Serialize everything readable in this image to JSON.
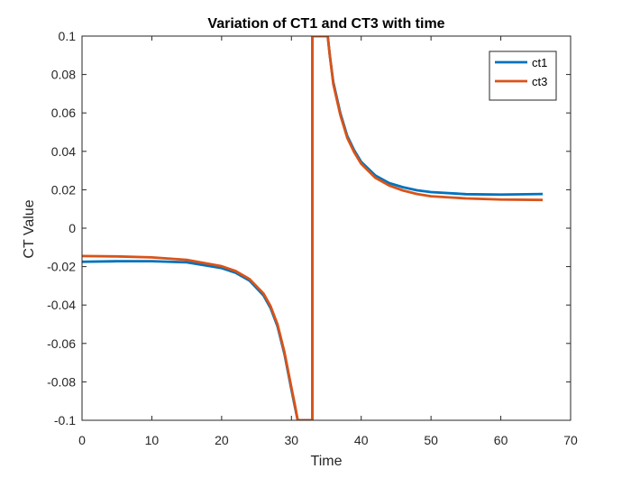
{
  "chart_data": {
    "type": "line",
    "title": "Variation of CT1 and CT3 with time",
    "xlabel": "Time",
    "ylabel": "CT Value",
    "xlim": [
      0,
      70
    ],
    "ylim": [
      -0.1,
      0.1
    ],
    "xticks": [
      0,
      10,
      20,
      30,
      40,
      50,
      60,
      70
    ],
    "xtick_labels": [
      "0",
      "10",
      "20",
      "30",
      "40",
      "50",
      "60",
      "70"
    ],
    "yticks": [
      -0.1,
      -0.08,
      -0.06,
      -0.04,
      -0.02,
      0,
      0.02,
      0.04,
      0.06,
      0.08,
      0.1
    ],
    "ytick_labels": [
      "-0.1",
      "-0.08",
      "-0.06",
      "-0.04",
      "-0.02",
      "0",
      "0.02",
      "0.04",
      "0.06",
      "0.08",
      "0.1"
    ],
    "grid": false,
    "legend_position": "top-right",
    "series": [
      {
        "name": "ct1",
        "color": "#0072BD",
        "x": [
          0,
          5,
          10,
          15,
          20,
          22,
          24,
          26,
          27,
          28,
          29,
          30,
          30.5,
          30.9,
          33.0,
          33.0,
          35.2,
          35.5,
          36,
          37,
          38,
          39,
          40,
          42,
          44,
          46,
          48,
          50,
          55,
          60,
          66
        ],
        "y": [
          -0.0175,
          -0.0172,
          -0.0172,
          -0.0178,
          -0.0208,
          -0.0232,
          -0.0273,
          -0.035,
          -0.0415,
          -0.051,
          -0.0655,
          -0.084,
          -0.093,
          -0.1,
          -0.1,
          0.1,
          0.1,
          0.09,
          0.076,
          0.06,
          0.048,
          0.0405,
          0.0345,
          0.0275,
          0.0235,
          0.0213,
          0.0197,
          0.0188,
          0.0177,
          0.0175,
          0.0178
        ]
      },
      {
        "name": "ct3",
        "color": "#D95319",
        "x": [
          0,
          5,
          10,
          15,
          20,
          22,
          24,
          26,
          27,
          28,
          29,
          30,
          30.5,
          30.9,
          33.0,
          33.0,
          35.2,
          35.5,
          36,
          37,
          38,
          39,
          40,
          42,
          44,
          46,
          48,
          50,
          55,
          60,
          66
        ],
        "y": [
          -0.0145,
          -0.0147,
          -0.0152,
          -0.0165,
          -0.0198,
          -0.0223,
          -0.0265,
          -0.034,
          -0.0405,
          -0.05,
          -0.0645,
          -0.083,
          -0.092,
          -0.1,
          -0.1,
          0.1,
          0.1,
          0.09,
          0.075,
          0.059,
          0.047,
          0.0395,
          0.0335,
          0.0263,
          0.0222,
          0.0196,
          0.0178,
          0.0166,
          0.0155,
          0.0149,
          0.0147
        ]
      }
    ]
  }
}
